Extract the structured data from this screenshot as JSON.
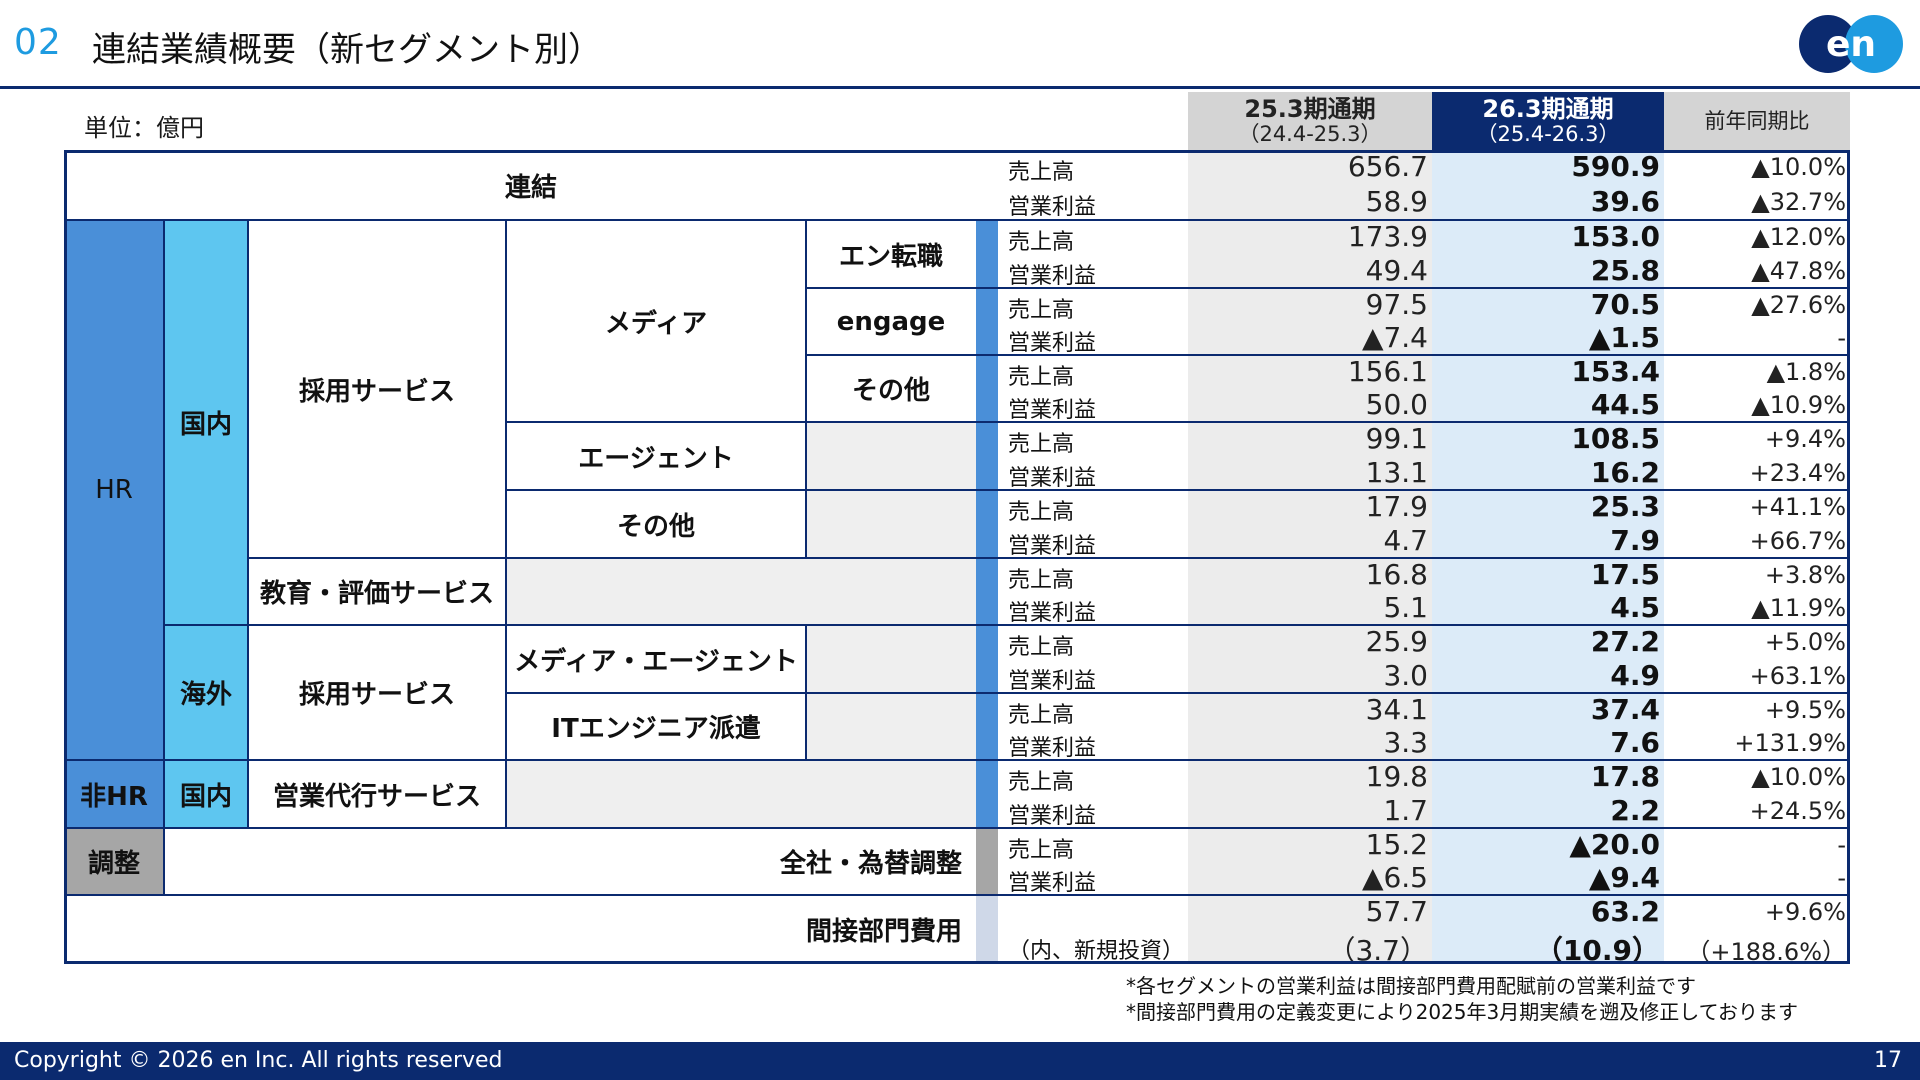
{
  "header": {
    "section_number": "02",
    "title": "連結業績概要（新セグメント別）",
    "logo_text": "en"
  },
  "unit": "単位：億円",
  "columns": {
    "prev": {
      "label": "25.3期通期",
      "range": "（24.4-25.3）"
    },
    "curr": {
      "label": "26.3期通期",
      "range": "（25.4-26.3）"
    },
    "yoy": "前年同期比"
  },
  "segments": {
    "consolidated": "連結",
    "hr": "HR",
    "domestic": "国内",
    "overseas": "海外",
    "recruit_service": "採用サービス",
    "media": "メディア",
    "en_tenshoku": "エン転職",
    "engage": "engage",
    "other_media": "その他",
    "agent": "エージェント",
    "other": "その他",
    "edu_service": "教育・評価サービス",
    "overseas_recruit": "採用サービス",
    "media_agent": "メディア・エージェント",
    "it_engineer": "ITエンジニア派遣",
    "non_hr": "非HR",
    "non_hr_domestic": "国内",
    "sales_agency": "営業代行サービス",
    "adjust": "調整",
    "corp_fx": "全社・為替調整",
    "indirect": "間接部門費用"
  },
  "metrics": {
    "sales": "売上高",
    "op": "営業利益",
    "incl_new": "（内、新規投資）"
  },
  "rows": [
    {
      "l": "売上高",
      "prev": "656.7",
      "curr": "590.9",
      "yoy": "▲10.0%"
    },
    {
      "l": "営業利益",
      "prev": "58.9",
      "curr": "39.6",
      "yoy": "▲32.7%"
    },
    {
      "l": "売上高",
      "prev": "173.9",
      "curr": "153.0",
      "yoy": "▲12.0%"
    },
    {
      "l": "営業利益",
      "prev": "49.4",
      "curr": "25.8",
      "yoy": "▲47.8%"
    },
    {
      "l": "売上高",
      "prev": "97.5",
      "curr": "70.5",
      "yoy": "▲27.6%"
    },
    {
      "l": "営業利益",
      "prev": "▲7.4",
      "curr": "▲1.5",
      "yoy": "-"
    },
    {
      "l": "売上高",
      "prev": "156.1",
      "curr": "153.4",
      "yoy": "▲1.8%"
    },
    {
      "l": "営業利益",
      "prev": "50.0",
      "curr": "44.5",
      "yoy": "▲10.9%"
    },
    {
      "l": "売上高",
      "prev": "99.1",
      "curr": "108.5",
      "yoy": "+9.4%"
    },
    {
      "l": "営業利益",
      "prev": "13.1",
      "curr": "16.2",
      "yoy": "+23.4%"
    },
    {
      "l": "売上高",
      "prev": "17.9",
      "curr": "25.3",
      "yoy": "+41.1%"
    },
    {
      "l": "営業利益",
      "prev": "4.7",
      "curr": "7.9",
      "yoy": "+66.7%"
    },
    {
      "l": "売上高",
      "prev": "16.8",
      "curr": "17.5",
      "yoy": "+3.8%"
    },
    {
      "l": "営業利益",
      "prev": "5.1",
      "curr": "4.5",
      "yoy": "▲11.9%"
    },
    {
      "l": "売上高",
      "prev": "25.9",
      "curr": "27.2",
      "yoy": "+5.0%"
    },
    {
      "l": "営業利益",
      "prev": "3.0",
      "curr": "4.9",
      "yoy": "+63.1%"
    },
    {
      "l": "売上高",
      "prev": "34.1",
      "curr": "37.4",
      "yoy": "+9.5%"
    },
    {
      "l": "営業利益",
      "prev": "3.3",
      "curr": "7.6",
      "yoy": "+131.9%"
    },
    {
      "l": "売上高",
      "prev": "19.8",
      "curr": "17.8",
      "yoy": "▲10.0%"
    },
    {
      "l": "営業利益",
      "prev": "1.7",
      "curr": "2.2",
      "yoy": "+24.5%"
    },
    {
      "l": "売上高",
      "prev": "15.2",
      "curr": "▲20.0",
      "yoy": "-"
    },
    {
      "l": "営業利益",
      "prev": "▲6.5",
      "curr": "▲9.4",
      "yoy": "-"
    },
    {
      "l": "",
      "prev": "57.7",
      "curr": "63.2",
      "yoy": "+9.6%"
    },
    {
      "l": "（内、新規投資）",
      "prev": "（3.7）",
      "curr": "（10.9）",
      "yoy": "（+188.6%）"
    }
  ],
  "notes": [
    "*各セグメントの営業利益は間接部門費用配賦前の営業利益です",
    "*間接部門費用の定義変更により2025年3月期実績を遡及修正しております"
  ],
  "footer": {
    "copyright": "Copyright © 2026 en Inc. All rights reserved",
    "page": "17"
  },
  "colors": {
    "navy": "#0b2a6f",
    "hr_blue": "#4a8fd8",
    "light_blue": "#5ec6f0",
    "accent": "#1e9be0"
  }
}
